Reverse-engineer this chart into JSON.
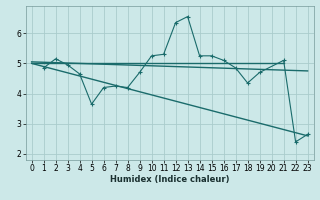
{
  "background_color": "#cce8e8",
  "grid_color": "#aacccc",
  "line_color": "#1a6b6b",
  "xlabel": "Humidex (Indice chaleur)",
  "xlim": [
    -0.5,
    23.5
  ],
  "ylim": [
    1.8,
    6.9
  ],
  "xticks": [
    0,
    1,
    2,
    3,
    4,
    5,
    6,
    7,
    8,
    9,
    10,
    11,
    12,
    13,
    14,
    15,
    16,
    17,
    18,
    19,
    20,
    21,
    22,
    23
  ],
  "yticks": [
    2,
    3,
    4,
    5,
    6
  ],
  "scatter_x": [
    1,
    2,
    3,
    4,
    5,
    6,
    7,
    8,
    9,
    10,
    11,
    12,
    13,
    14,
    15,
    16,
    17,
    18,
    19,
    21,
    22,
    23
  ],
  "scatter_y": [
    4.85,
    5.15,
    4.95,
    4.65,
    3.65,
    4.2,
    4.25,
    4.2,
    4.7,
    5.25,
    5.3,
    6.35,
    6.55,
    5.25,
    5.25,
    5.1,
    4.85,
    4.35,
    4.7,
    5.1,
    2.4,
    2.65
  ],
  "line1_x": [
    0,
    21
  ],
  "line1_y": [
    5.0,
    5.0
  ],
  "line2_x": [
    0,
    23
  ],
  "line2_y": [
    5.05,
    4.75
  ],
  "line3_x": [
    0,
    23
  ],
  "line3_y": [
    5.0,
    2.6
  ],
  "xlabel_fontsize": 6,
  "tick_fontsize": 5.5
}
